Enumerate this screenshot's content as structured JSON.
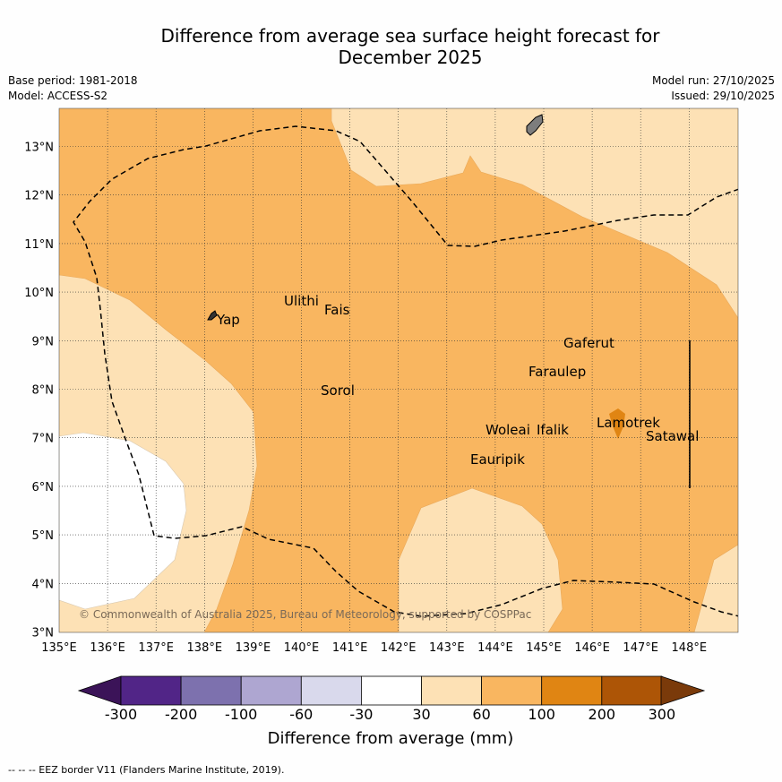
{
  "title": {
    "line1": "Difference from average sea surface height forecast for",
    "line2": "December 2025"
  },
  "meta": {
    "base_period": "Base period: 1981-2018",
    "model": "Model: ACCESS-S2",
    "model_run": "Model run: 27/10/2025",
    "issued": "Issued: 29/10/2025"
  },
  "map": {
    "credit": "© Commonwealth of Australia 2025, Bureau of Meteorology, supported by COSPPac",
    "lat_labels": [
      "13°N",
      "12°N",
      "11°N",
      "10°N",
      "9°N",
      "8°N",
      "7°N",
      "6°N",
      "5°N",
      "4°N",
      "3°N"
    ],
    "lon_labels": [
      "135°E",
      "136°E",
      "137°E",
      "138°E",
      "139°E",
      "140°E",
      "141°E",
      "142°E",
      "143°E",
      "144°E",
      "145°E",
      "146°E",
      "147°E",
      "148°E"
    ],
    "places": [
      {
        "name": "Yap"
      },
      {
        "name": "Ulithi"
      },
      {
        "name": "Fais"
      },
      {
        "name": "Gaferut"
      },
      {
        "name": "Faraulep"
      },
      {
        "name": "Sorol"
      },
      {
        "name": "Lamotrek"
      },
      {
        "name": "Woleai"
      },
      {
        "name": "Ifalik"
      },
      {
        "name": "Satawal"
      },
      {
        "name": "Eauripik"
      }
    ]
  },
  "colorbar": {
    "title": "Difference from average (mm)",
    "ticks": [
      "-300",
      "-200",
      "-100",
      "-60",
      "-30",
      "30",
      "60",
      "100",
      "200",
      "300"
    ],
    "colors": [
      "#3b1358",
      "#512587",
      "#7d71ae",
      "#aea6d1",
      "#d9d9ec",
      "#ffffff",
      "#fde1b5",
      "#f9b660",
      "#e08513",
      "#ad5506",
      "#7a3a0a"
    ]
  },
  "footnote": "--  --  -- EEZ border V11 (Flanders Marine Institute, 2019)."
}
